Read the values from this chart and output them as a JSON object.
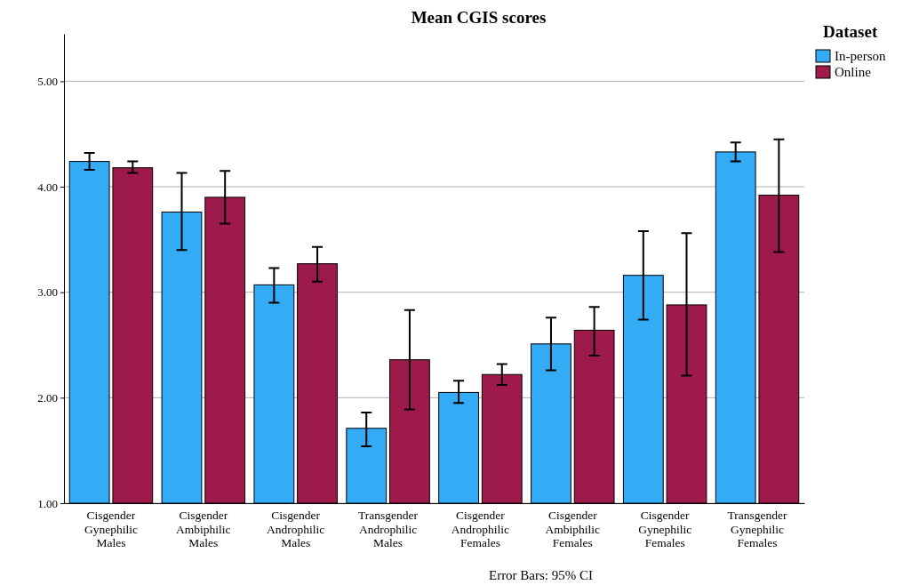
{
  "chart_data": {
    "type": "bar",
    "title": "Mean CGIS scores",
    "legend_title": "Dataset",
    "legend": "top right",
    "grid": "y",
    "categories": [
      "Cisgender Gynephilic Males",
      "Cisgender Ambiphilic Males",
      "Cisgender Androphilic Males",
      "Transgender Androphilic Males",
      "Cisgender Androphilic Females",
      "Cisgender Ambiphilic Females",
      "Cisgender Gynephilic Females",
      "Transgender Gynephilic Females"
    ],
    "series": [
      {
        "name": "In-person",
        "color": "#33abf5",
        "values": [
          4.24,
          3.76,
          3.07,
          1.71,
          2.05,
          2.51,
          3.16,
          4.33
        ],
        "errors": [
          [
            4.16,
            4.32
          ],
          [
            3.4,
            4.13
          ],
          [
            2.9,
            3.23
          ],
          [
            1.54,
            1.86
          ],
          [
            1.95,
            2.16
          ],
          [
            2.26,
            2.76
          ],
          [
            2.74,
            3.58
          ],
          [
            4.24,
            4.42
          ]
        ]
      },
      {
        "name": "Online",
        "color": "#9e1a4b",
        "values": [
          4.18,
          3.9,
          3.27,
          2.36,
          2.22,
          2.64,
          2.88,
          3.92
        ],
        "errors": [
          [
            4.13,
            4.24
          ],
          [
            3.65,
            4.15
          ],
          [
            3.1,
            3.43
          ],
          [
            1.89,
            2.83
          ],
          [
            2.12,
            2.32
          ],
          [
            2.4,
            2.86
          ],
          [
            2.21,
            3.56
          ],
          [
            3.38,
            4.45
          ]
        ]
      }
    ],
    "ylim": [
      1,
      5.45
    ],
    "yticks": [
      {
        "value": 1,
        "label": "1.00"
      },
      {
        "value": 2,
        "label": "2.00"
      },
      {
        "value": 3,
        "label": "3.00"
      },
      {
        "value": 4,
        "label": "4.00"
      },
      {
        "value": 5,
        "label": "5.00"
      }
    ],
    "annotations": [
      "Error Bars: 95% CI"
    ]
  }
}
